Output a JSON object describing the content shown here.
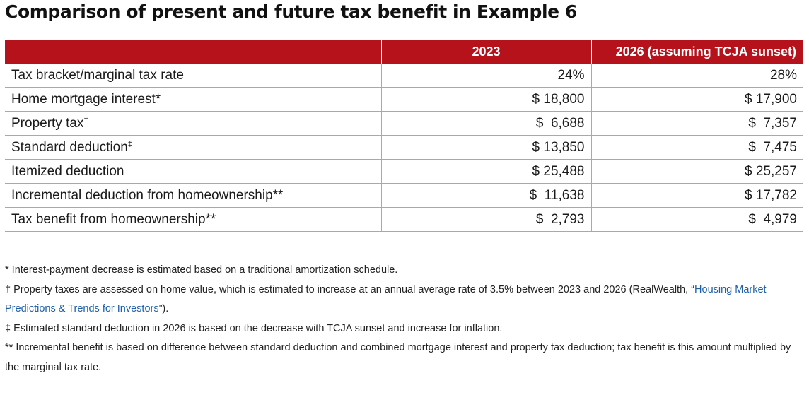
{
  "title": "Comparison of present and future tax benefit in Example 6",
  "table": {
    "headers": [
      "",
      "2023",
      "2026 (assuming TCJA sunset)"
    ],
    "rows": [
      {
        "label": "Tax bracket/marginal tax rate",
        "mark": "",
        "v2023": "24%",
        "v2026": "28%"
      },
      {
        "label": "Home mortgage interest*",
        "mark": "",
        "v2023": "$ 18,800",
        "v2026": "$ 17,900"
      },
      {
        "label": "Property tax",
        "mark": "†",
        "v2023": "$  6,688",
        "v2026": "$  7,357"
      },
      {
        "label": "Standard deduction",
        "mark": "‡",
        "v2023": "$ 13,850",
        "v2026": "$  7,475"
      },
      {
        "label": "Itemized deduction",
        "mark": "",
        "v2023": "$ 25,488",
        "v2026": "$ 25,257"
      },
      {
        "label": "Incremental deduction from homeownership**",
        "mark": "",
        "v2023": "$  11,638",
        "v2026": "$ 17,782"
      },
      {
        "label": "Tax benefit from homeownership**",
        "mark": "",
        "v2023": "$  2,793",
        "v2026": "$  4,979"
      }
    ]
  },
  "footnotes": {
    "interest": "* Interest-payment decrease is estimated based on a traditional amortization schedule.",
    "property_before": "† Property taxes are assessed on home value, which is estimated to increase at an annual average rate of 3.5% between 2023 and 2026 (RealWealth, “",
    "property_link": "Housing Market Predictions & Trends for Investors",
    "property_after": "”).",
    "standard": "‡ Estimated standard deduction in 2026 is based on the decrease with TCJA sunset and increase for inflation.",
    "incremental": "** Incremental benefit is based on difference between standard deduction and combined mortgage interest and property tax deduction; tax benefit is this amount multiplied by the marginal tax rate."
  },
  "colors": {
    "header_background": "#b5121b",
    "link": "#1f5fa8",
    "row_divider": "#a9a9a9"
  }
}
